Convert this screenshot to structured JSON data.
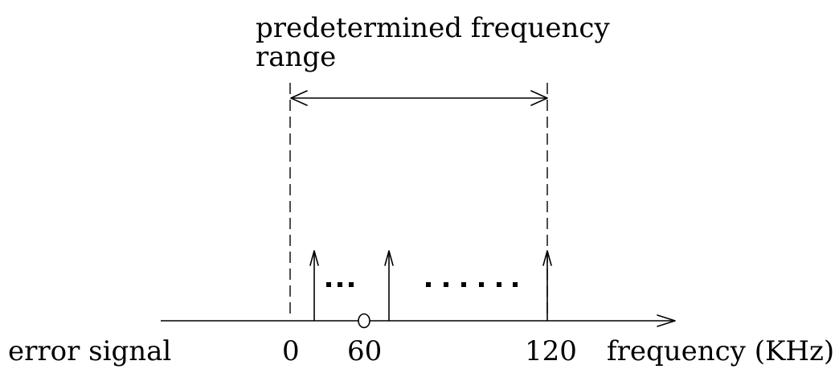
{
  "title_line1": "predetermined frequency",
  "title_line2": "range",
  "left_label": "error signal",
  "axis_label": "frequency (KHz)",
  "ticks": {
    "zero": "0",
    "sixty": "60",
    "one_twenty": "120"
  },
  "ellipsis_short": "...",
  "ellipsis_long": "......"
}
